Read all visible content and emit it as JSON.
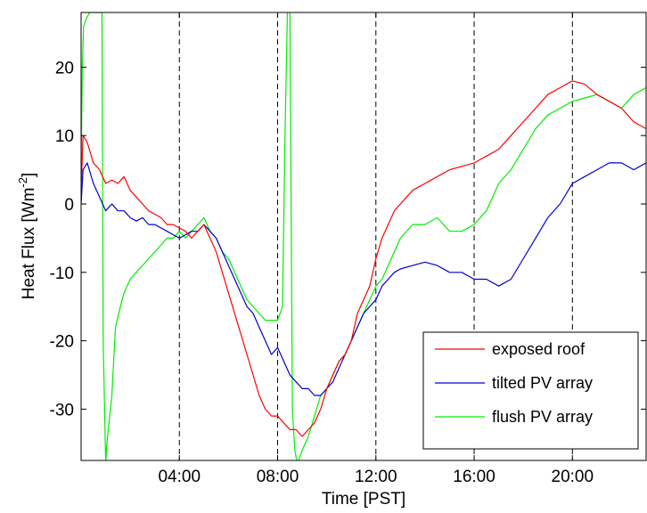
{
  "chart_data": {
    "type": "line",
    "title": "",
    "xlabel": "Time [PST]",
    "ylabel_main": "Heat Flux [Wm",
    "ylabel_sup": "-2",
    "ylabel_close": "]",
    "xlim": [
      0,
      23
    ],
    "ylim": [
      -37.5,
      28
    ],
    "xticks": [
      4,
      8,
      12,
      16,
      20
    ],
    "xtick_labels": [
      "04:00",
      "08:00",
      "12:00",
      "16:00",
      "20:00"
    ],
    "yticks": [
      -30,
      -20,
      -10,
      0,
      10,
      20
    ],
    "ytick_labels": [
      "-30",
      "-20",
      "-10",
      "0",
      "10",
      "20"
    ],
    "vertical_dashed_lines": [
      4,
      8,
      12,
      16,
      20
    ],
    "grid": false,
    "legend_position": "bottom-right",
    "series": [
      {
        "name": "exposed roof",
        "color": "#ff0000",
        "x": [
          0.0,
          0.08,
          0.25,
          0.5,
          0.75,
          1.0,
          1.25,
          1.5,
          1.75,
          2.0,
          2.25,
          2.5,
          2.75,
          3.0,
          3.25,
          3.5,
          3.75,
          4.0,
          4.25,
          4.5,
          4.75,
          5.0,
          5.25,
          5.5,
          5.75,
          6.0,
          6.25,
          6.5,
          6.75,
          7.0,
          7.25,
          7.5,
          7.75,
          8.0,
          8.25,
          8.5,
          8.75,
          9.0,
          9.25,
          9.5,
          9.75,
          10.0,
          10.25,
          10.5,
          10.75,
          11.0,
          11.25,
          11.5,
          11.75,
          12.0,
          12.25,
          12.5,
          12.75,
          13.0,
          13.25,
          13.5,
          13.75,
          14.0,
          14.5,
          15.0,
          15.5,
          16.0,
          16.5,
          17.0,
          17.5,
          18.0,
          18.5,
          19.0,
          19.5,
          20.0,
          20.5,
          21.0,
          21.5,
          22.0,
          22.5,
          23.0
        ],
        "y": [
          2,
          10,
          9,
          6,
          5,
          3,
          3.5,
          3,
          4,
          2,
          1,
          0,
          -1,
          -1.5,
          -2,
          -3,
          -3,
          -3.5,
          -4,
          -5,
          -4,
          -3,
          -5,
          -7,
          -10,
          -13,
          -16,
          -19,
          -22,
          -25,
          -28,
          -30,
          -31,
          -31,
          -32,
          -33,
          -33,
          -34,
          -33,
          -32,
          -30,
          -27,
          -25,
          -23,
          -22,
          -20,
          -16,
          -14,
          -12,
          -8,
          -5,
          -3,
          -1,
          0,
          1,
          2,
          2.5,
          3,
          4,
          5,
          5.5,
          6,
          7,
          8,
          10,
          12,
          14,
          16,
          17,
          18,
          17.5,
          16,
          15,
          14,
          12,
          11
        ]
      },
      {
        "name": "tilted PV array",
        "color": "#0000cc",
        "x": [
          0.0,
          0.08,
          0.25,
          0.5,
          0.75,
          1.0,
          1.25,
          1.5,
          1.75,
          2.0,
          2.25,
          2.5,
          2.75,
          3.0,
          3.25,
          3.5,
          3.75,
          4.0,
          4.25,
          4.5,
          4.75,
          5.0,
          5.25,
          5.5,
          5.75,
          6.0,
          6.25,
          6.5,
          6.75,
          7.0,
          7.25,
          7.5,
          7.75,
          8.0,
          8.25,
          8.5,
          8.75,
          9.0,
          9.25,
          9.5,
          9.75,
          10.0,
          10.25,
          10.5,
          10.75,
          11.0,
          11.25,
          11.5,
          11.75,
          12.0,
          12.25,
          12.5,
          12.75,
          13.0,
          13.5,
          14.0,
          14.5,
          15.0,
          15.5,
          16.0,
          16.5,
          17.0,
          17.5,
          18.0,
          18.5,
          19.0,
          19.5,
          20.0,
          20.5,
          21.0,
          21.5,
          22.0,
          22.5,
          23.0
        ],
        "y": [
          0,
          5,
          6,
          3,
          1,
          -1,
          0,
          -1,
          -1,
          -2,
          -2.5,
          -2,
          -3,
          -3,
          -3.5,
          -4,
          -4.5,
          -5,
          -4.5,
          -4,
          -4,
          -3,
          -4,
          -5,
          -7,
          -9,
          -11,
          -13,
          -15,
          -16,
          -18,
          -20,
          -22,
          -21,
          -23,
          -25,
          -26,
          -27,
          -27,
          -28,
          -28,
          -27,
          -26,
          -24,
          -22,
          -20,
          -18,
          -16,
          -15,
          -14,
          -12,
          -11,
          -10,
          -9.5,
          -9,
          -8.5,
          -9,
          -10,
          -10,
          -11,
          -11,
          -12,
          -11,
          -8,
          -5,
          -2,
          0,
          3,
          4,
          5,
          6,
          6,
          5,
          6
        ]
      },
      {
        "name": "flush PV array",
        "color": "#00ee00",
        "x": [
          0.0,
          0.05,
          0.1,
          0.2,
          0.35,
          0.6,
          0.8,
          0.85,
          0.9,
          1.0,
          1.05,
          1.25,
          1.4,
          1.6,
          1.75,
          2.0,
          2.25,
          2.5,
          2.75,
          3.0,
          3.25,
          3.5,
          3.75,
          4.0,
          4.25,
          4.5,
          4.75,
          5.0,
          5.25,
          5.5,
          5.75,
          6.0,
          6.25,
          6.5,
          6.75,
          7.0,
          7.25,
          7.5,
          7.75,
          8.0,
          8.2,
          8.3,
          8.4,
          8.5,
          8.6,
          8.7,
          8.8,
          8.9,
          9.0,
          9.25,
          9.5,
          9.75,
          10.0,
          10.25,
          10.5,
          10.75,
          11.0,
          11.25,
          11.5,
          11.75,
          12.0,
          12.25,
          12.5,
          12.75,
          13.0,
          13.5,
          14.0,
          14.5,
          15.0,
          15.5,
          16.0,
          16.5,
          17.0,
          17.5,
          18.0,
          18.5,
          19.0,
          19.5,
          20.0,
          20.5,
          21.0,
          21.5,
          22.0,
          22.5,
          23.0
        ],
        "y": [
          5,
          20,
          26,
          27,
          28,
          28,
          28,
          28,
          -20,
          -38,
          -35,
          -28,
          -18,
          -15,
          -13,
          -11,
          -10,
          -9,
          -8,
          -7,
          -6,
          -5,
          -5,
          -4,
          -5,
          -4,
          -3,
          -2,
          -4,
          -5,
          -7,
          -8,
          -10,
          -12,
          -14,
          -15,
          -16,
          -17,
          -17,
          -17,
          -15,
          10,
          28,
          28,
          -30,
          -36,
          -38,
          -37,
          -36,
          -34,
          -31,
          -28,
          -27,
          -25,
          -23,
          -22,
          -20,
          -18,
          -16,
          -14,
          -12,
          -11,
          -9,
          -7,
          -5,
          -3,
          -3,
          -2,
          -4,
          -4,
          -3,
          -1,
          3,
          5,
          8,
          11,
          13,
          14,
          15,
          15.5,
          16,
          15,
          14,
          16,
          17
        ]
      }
    ]
  }
}
